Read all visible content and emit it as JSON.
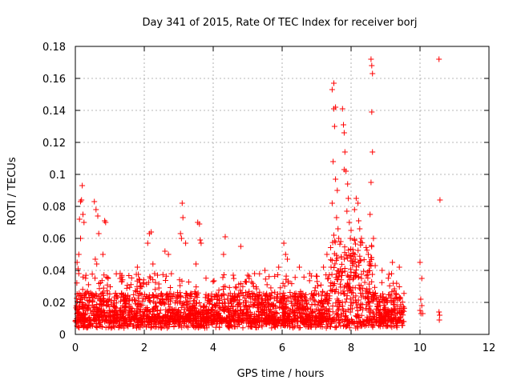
{
  "chart_data": {
    "type": "scatter",
    "title": "Day 341 of 2015, Rate Of TEC Index for receiver borj",
    "xlabel": "GPS time / hours",
    "ylabel": "ROTI / TECUs",
    "xlim": [
      0,
      12
    ],
    "ylim": [
      0,
      0.18
    ],
    "grid": true,
    "marker": "+",
    "color": "#ff0000",
    "x_ticks": [
      "0",
      "2",
      "4",
      "6",
      "8",
      "10",
      "12"
    ],
    "y_ticks": [
      "0",
      "0.02",
      "0.04",
      "0.06",
      "0.08",
      "0.1",
      "0.12",
      "0.14",
      "0.16",
      "0.18"
    ],
    "x_tick_values": [
      0,
      2,
      4,
      6,
      8,
      10,
      12
    ],
    "y_tick_values": [
      0,
      0.02,
      0.04,
      0.06,
      0.08,
      0.1,
      0.12,
      0.14,
      0.16,
      0.18
    ],
    "series": [
      {
        "name": "ROTI",
        "points": [
          [
            0.05,
            0.045
          ],
          [
            0.08,
            0.041
          ],
          [
            0.1,
            0.038
          ],
          [
            0.12,
            0.072
          ],
          [
            0.15,
            0.083
          ],
          [
            0.18,
            0.084
          ],
          [
            0.2,
            0.093
          ],
          [
            0.22,
            0.075
          ],
          [
            0.25,
            0.07
          ],
          [
            0.1,
            0.05
          ],
          [
            0.15,
            0.06
          ],
          [
            0.55,
            0.083
          ],
          [
            0.6,
            0.078
          ],
          [
            0.65,
            0.074
          ],
          [
            0.68,
            0.063
          ],
          [
            0.58,
            0.047
          ],
          [
            0.62,
            0.044
          ],
          [
            0.85,
            0.071
          ],
          [
            0.88,
            0.07
          ],
          [
            0.8,
            0.05
          ],
          [
            0.95,
            0.035
          ],
          [
            1.3,
            0.038
          ],
          [
            1.35,
            0.033
          ],
          [
            1.8,
            0.042
          ],
          [
            2.1,
            0.057
          ],
          [
            2.15,
            0.063
          ],
          [
            2.2,
            0.064
          ],
          [
            2.25,
            0.044
          ],
          [
            2.3,
            0.038
          ],
          [
            2.6,
            0.052
          ],
          [
            2.7,
            0.05
          ],
          [
            3.1,
            0.082
          ],
          [
            3.12,
            0.073
          ],
          [
            3.05,
            0.063
          ],
          [
            3.08,
            0.06
          ],
          [
            3.2,
            0.057
          ],
          [
            3.5,
            0.044
          ],
          [
            3.55,
            0.07
          ],
          [
            3.6,
            0.069
          ],
          [
            3.62,
            0.059
          ],
          [
            3.65,
            0.057
          ],
          [
            4.35,
            0.061
          ],
          [
            4.3,
            0.05
          ],
          [
            4.8,
            0.055
          ],
          [
            5.0,
            0.037
          ],
          [
            5.2,
            0.038
          ],
          [
            5.5,
            0.04
          ],
          [
            5.9,
            0.042
          ],
          [
            6.05,
            0.057
          ],
          [
            6.1,
            0.05
          ],
          [
            6.15,
            0.047
          ],
          [
            6.5,
            0.042
          ],
          [
            6.8,
            0.038
          ],
          [
            7.2,
            0.042
          ],
          [
            7.3,
            0.05
          ],
          [
            7.45,
            0.153
          ],
          [
            7.5,
            0.157
          ],
          [
            7.55,
            0.142
          ],
          [
            7.5,
            0.141
          ],
          [
            7.52,
            0.13
          ],
          [
            7.48,
            0.108
          ],
          [
            7.55,
            0.097
          ],
          [
            7.6,
            0.09
          ],
          [
            7.45,
            0.082
          ],
          [
            7.58,
            0.073
          ],
          [
            7.62,
            0.066
          ],
          [
            7.5,
            0.062
          ],
          [
            7.7,
            0.058
          ],
          [
            7.75,
            0.141
          ],
          [
            7.78,
            0.131
          ],
          [
            7.8,
            0.126
          ],
          [
            7.82,
            0.114
          ],
          [
            7.8,
            0.103
          ],
          [
            7.85,
            0.102
          ],
          [
            7.9,
            0.094
          ],
          [
            7.92,
            0.085
          ],
          [
            7.88,
            0.077
          ],
          [
            7.95,
            0.07
          ],
          [
            8.0,
            0.065
          ],
          [
            7.98,
            0.06
          ],
          [
            8.1,
            0.078
          ],
          [
            8.15,
            0.085
          ],
          [
            8.2,
            0.082
          ],
          [
            8.22,
            0.071
          ],
          [
            8.25,
            0.066
          ],
          [
            8.3,
            0.06
          ],
          [
            8.05,
            0.053
          ],
          [
            8.12,
            0.047
          ],
          [
            8.58,
            0.172
          ],
          [
            8.6,
            0.168
          ],
          [
            8.62,
            0.163
          ],
          [
            8.6,
            0.139
          ],
          [
            8.62,
            0.114
          ],
          [
            8.58,
            0.095
          ],
          [
            8.55,
            0.075
          ],
          [
            8.65,
            0.06
          ],
          [
            8.5,
            0.05
          ],
          [
            8.7,
            0.043
          ],
          [
            8.9,
            0.04
          ],
          [
            9.2,
            0.045
          ],
          [
            9.4,
            0.042
          ],
          [
            10.0,
            0.045
          ],
          [
            10.05,
            0.035
          ],
          [
            10.02,
            0.022
          ],
          [
            10.05,
            0.018
          ],
          [
            10.55,
            0.172
          ],
          [
            10.58,
            0.084
          ],
          [
            10.55,
            0.014
          ],
          [
            10.57,
            0.012
          ],
          [
            10.56,
            0.009
          ],
          [
            10.0,
            0.015
          ],
          [
            10.08,
            0.013
          ],
          [
            10.03,
            0.013
          ]
        ]
      }
    ],
    "dense_band": {
      "x_start": 0.0,
      "x_end": 9.55,
      "y_floor": 0.004,
      "typical_low": 0.008,
      "typical_high": 0.026,
      "extended_high_x": [
        7.4,
        8.6
      ],
      "extended_high_value": 0.05
    }
  }
}
